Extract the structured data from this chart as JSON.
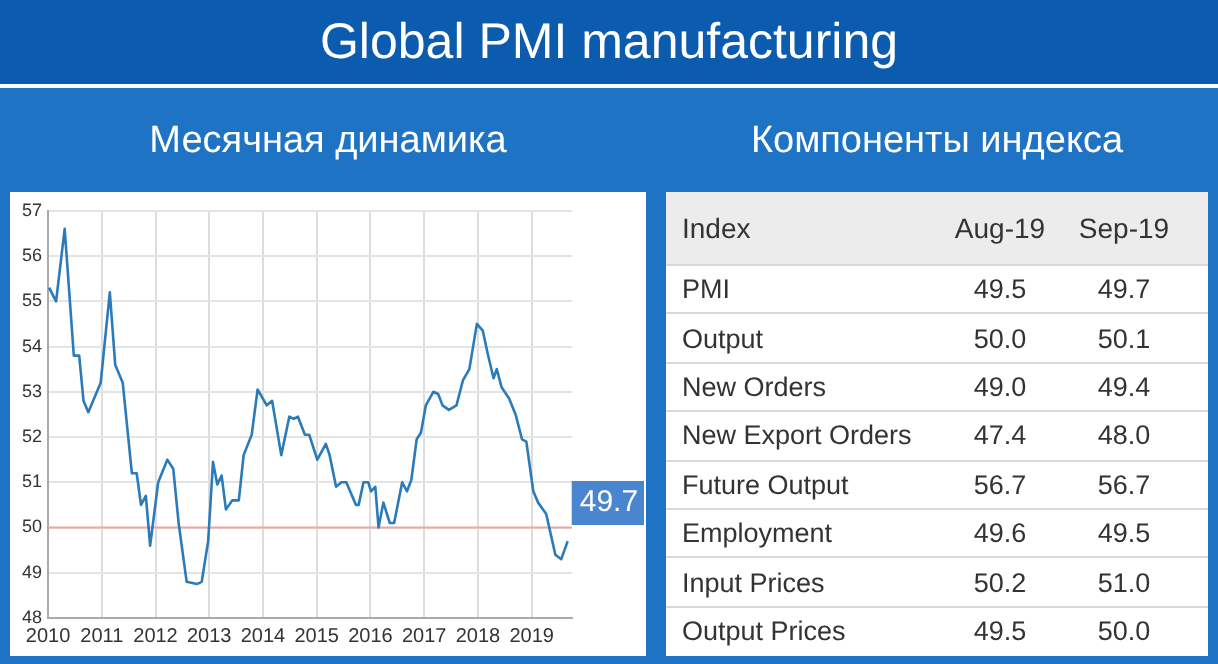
{
  "chart_data": [
    {
      "type": "line",
      "title": "Global PMI manufacturing",
      "subtitle": "Месячная динамика",
      "x": [
        2010.02,
        2010.15,
        2010.31,
        2010.48,
        2010.58,
        2010.66,
        2010.75,
        2010.98,
        2011.15,
        2011.25,
        2011.39,
        2011.56,
        2011.65,
        2011.73,
        2011.82,
        2011.9,
        2012.05,
        2012.22,
        2012.33,
        2012.43,
        2012.58,
        2012.77,
        2012.86,
        2012.98,
        2013.07,
        2013.15,
        2013.23,
        2013.31,
        2013.43,
        2013.55,
        2013.64,
        2013.79,
        2013.9,
        2014.07,
        2014.17,
        2014.34,
        2014.49,
        2014.57,
        2014.65,
        2014.78,
        2014.86,
        2015.01,
        2015.17,
        2015.24,
        2015.36,
        2015.46,
        2015.55,
        2015.73,
        2015.78,
        2015.87,
        2015.96,
        2016.01,
        2016.09,
        2016.15,
        2016.24,
        2016.36,
        2016.44,
        2016.59,
        2016.68,
        2016.76,
        2016.86,
        2016.94,
        2017.03,
        2017.17,
        2017.26,
        2017.34,
        2017.46,
        2017.6,
        2017.72,
        2017.84,
        2017.98,
        2018.09,
        2018.18,
        2018.29,
        2018.35,
        2018.44,
        2018.58,
        2018.7,
        2018.82,
        2018.9,
        2019.03,
        2019.12,
        2019.27,
        2019.44,
        2019.55,
        2019.67
      ],
      "series": [
        {
          "color": "#2b7bba",
          "values": [
            55.3,
            55.0,
            56.6,
            53.8,
            53.8,
            52.8,
            52.55,
            53.2,
            55.2,
            53.6,
            53.2,
            51.2,
            51.2,
            50.5,
            50.7,
            49.6,
            51.0,
            51.5,
            51.3,
            50.1,
            48.8,
            48.75,
            48.8,
            49.7,
            51.45,
            50.95,
            51.15,
            50.4,
            50.6,
            50.6,
            51.6,
            52.05,
            53.05,
            52.7,
            52.8,
            51.6,
            52.45,
            52.4,
            52.45,
            52.05,
            52.05,
            51.5,
            51.85,
            51.6,
            50.9,
            51.0,
            51.0,
            50.5,
            50.5,
            51.0,
            51.0,
            50.8,
            50.9,
            50.0,
            50.55,
            50.1,
            50.1,
            51.0,
            50.8,
            51.05,
            51.95,
            52.1,
            52.7,
            53.0,
            52.95,
            52.7,
            52.6,
            52.7,
            53.25,
            53.5,
            54.5,
            54.35,
            53.85,
            53.3,
            53.5,
            53.1,
            52.85,
            52.5,
            51.95,
            51.9,
            50.8,
            50.55,
            50.3,
            49.4,
            49.3,
            49.7
          ]
        }
      ],
      "xlim": [
        2010,
        2019.75
      ],
      "xticks": [
        2010,
        2011,
        2012,
        2013,
        2014,
        2015,
        2016,
        2017,
        2018,
        2019
      ],
      "ylim": [
        48,
        57
      ],
      "yticks": [
        48,
        49,
        50,
        51,
        52,
        53,
        54,
        55,
        56,
        57
      ],
      "grid": true,
      "marker": "none",
      "ref_lines": [
        {
          "axis": "y",
          "value": 50,
          "color": "#f2a3a3"
        }
      ],
      "annotations": [
        {
          "text": "49.7",
          "x": 2019.67,
          "y": 49.7
        }
      ]
    },
    {
      "type": "other",
      "title": "Компоненты индекса",
      "xlabel": "Index",
      "categories": [
        "PMI",
        "Output",
        "New Orders",
        "New Export Orders",
        "Future Output",
        "Employment",
        "Input Prices",
        "Output Prices"
      ],
      "series": [
        {
          "name": "Aug-19",
          "values": [
            49.5,
            50.0,
            49.0,
            47.4,
            56.7,
            49.6,
            50.2,
            49.5
          ],
          "value_labels": [
            "49.5",
            "50.0",
            "49.0",
            "47.4",
            "56.7",
            "49.6",
            "50.2",
            "49.5"
          ]
        },
        {
          "name": "Sep-19",
          "values": [
            49.7,
            50.1,
            49.4,
            48.0,
            56.7,
            49.5,
            51.0,
            50.0
          ],
          "value_labels": [
            "49.7",
            "50.1",
            "49.4",
            "48.0",
            "56.7",
            "49.5",
            "51.0",
            "50.0"
          ]
        }
      ]
    }
  ]
}
